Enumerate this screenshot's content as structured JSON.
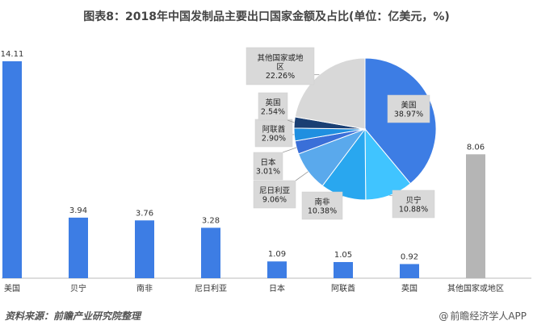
{
  "title": "图表8：2018年中国发制品主要出口国家金额及占比(单位：亿美元，%)",
  "colors": {
    "bar_blue": "#3d7de4",
    "bar_gray": "#b5b5b5",
    "pie": [
      "#3d7de4",
      "#40c4ff",
      "#29a7ef",
      "#5aa9ec",
      "#3a6fd8",
      "#1f8fe0",
      "#1a3f73",
      "#d8d8d8"
    ]
  },
  "chart_data": [
    {
      "type": "bar",
      "categories": [
        "美国",
        "贝宁",
        "南非",
        "尼日利亚",
        "日本",
        "阿联酋",
        "英国",
        "其他国家或地区"
      ],
      "values": [
        14.11,
        3.94,
        3.76,
        3.28,
        1.09,
        1.05,
        0.92,
        8.06
      ],
      "value_labels": [
        "14.11",
        "3.94",
        "3.76",
        "3.28",
        "1.09",
        "1.05",
        "0.92",
        "8.06"
      ],
      "ylim": [
        0,
        15
      ],
      "grid": false
    },
    {
      "type": "pie",
      "slices": [
        {
          "name": "美国",
          "value": 38.97,
          "label": "美国\n38.97%"
        },
        {
          "name": "贝宁",
          "value": 10.88,
          "label": "贝宁\n10.88%"
        },
        {
          "name": "南非",
          "value": 10.38,
          "label": "南非\n10.38%"
        },
        {
          "name": "尼日利亚",
          "value": 9.06,
          "label": "尼日利亚\n9.06%"
        },
        {
          "name": "日本",
          "value": 3.01,
          "label": "日本\n3.01%"
        },
        {
          "name": "阿联酋",
          "value": 2.9,
          "label": "阿联酋\n2.90%"
        },
        {
          "name": "英国",
          "value": 2.54,
          "label": "英国\n2.54%"
        },
        {
          "name": "其他国家或地区",
          "value": 22.26,
          "label": "其他国家或地\n区\n22.26%"
        }
      ]
    }
  ],
  "footer": {
    "source": "资料来源：前瞻产业研究院整理",
    "brand_at": "@",
    "brand": "前瞻经济学人APP"
  }
}
